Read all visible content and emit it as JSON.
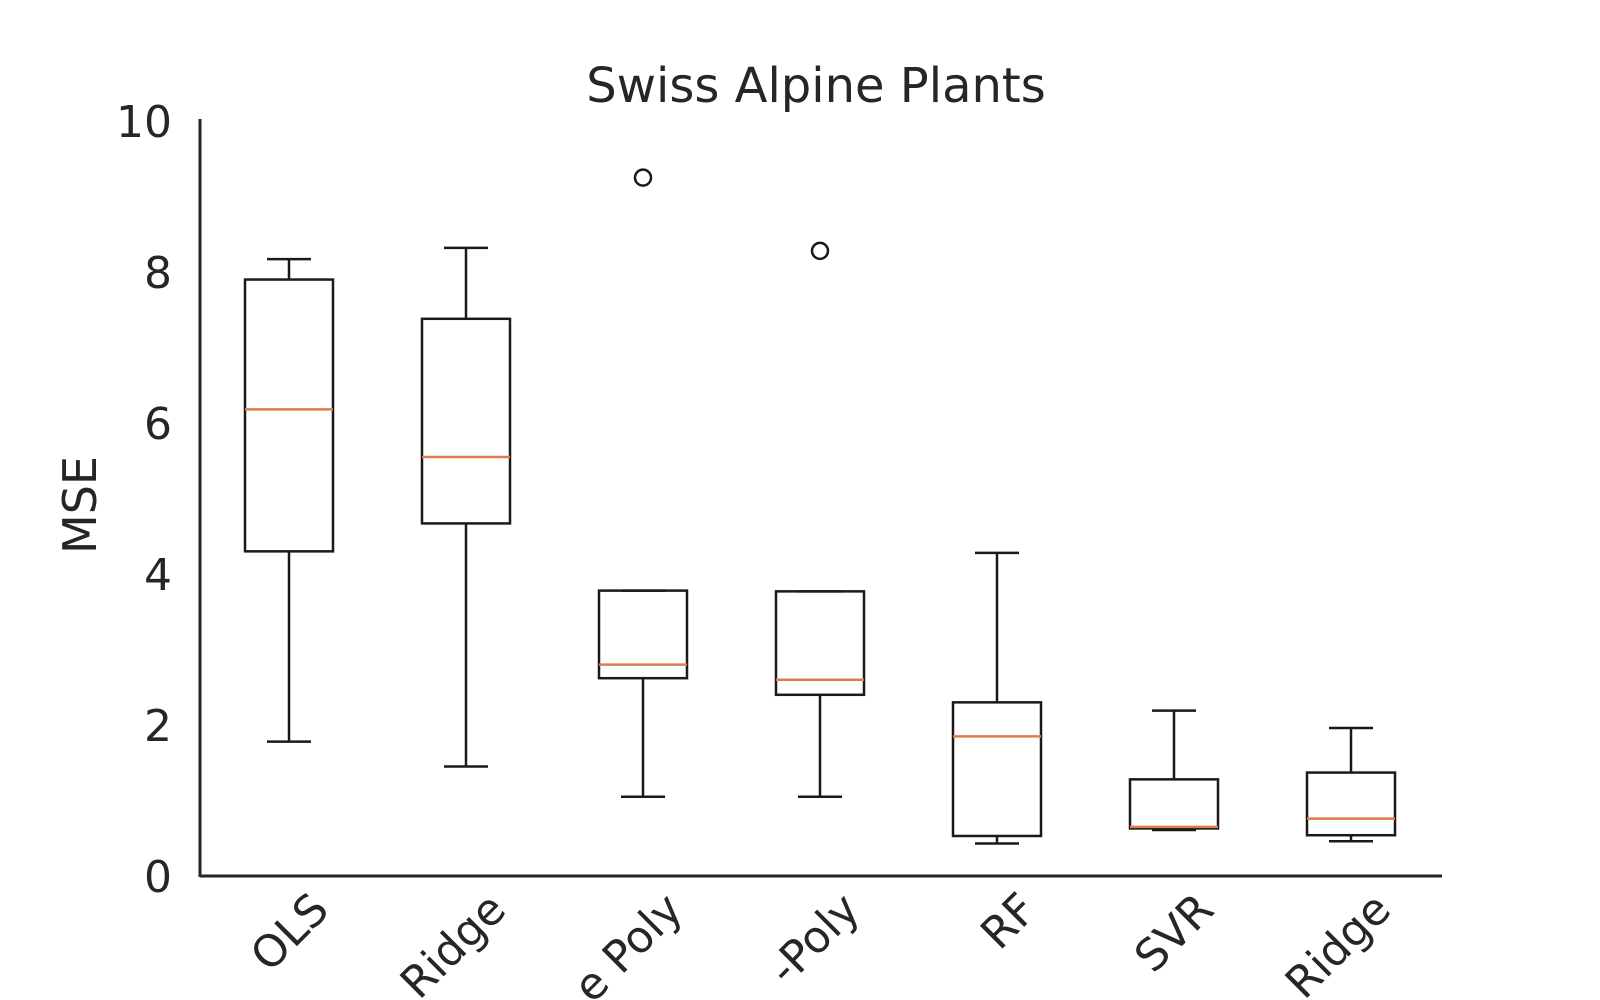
{
  "chart_data": {
    "type": "box",
    "title": "Swiss Alpine Plants",
    "xlabel": "",
    "ylabel": "MSE",
    "ylim": [
      0,
      10
    ],
    "yticks": [
      0,
      2,
      4,
      6,
      8,
      10
    ],
    "grid": false,
    "colors": {
      "box": "#1a1a1a",
      "median": "#e07b4a",
      "axis": "#262626"
    },
    "categories": [
      "OLS",
      "Ridge",
      "e Poly",
      "-Poly",
      "RF",
      "SVR",
      "Ridge"
    ],
    "boxes": [
      {
        "category": "OLS",
        "whisker_low": 1.78,
        "q1": 4.3,
        "median": 6.18,
        "q3": 7.9,
        "whisker_high": 8.17,
        "outliers": []
      },
      {
        "category": "Ridge",
        "whisker_low": 1.45,
        "q1": 4.67,
        "median": 5.55,
        "q3": 7.38,
        "whisker_high": 8.32,
        "outliers": []
      },
      {
        "category": "e Poly",
        "whisker_low": 1.05,
        "q1": 2.62,
        "median": 2.8,
        "q3": 3.78,
        "whisker_high": 3.78,
        "outliers": [
          9.25
        ]
      },
      {
        "category": "-Poly",
        "whisker_low": 1.05,
        "q1": 2.4,
        "median": 2.6,
        "q3": 3.77,
        "whisker_high": 3.77,
        "outliers": [
          8.28
        ]
      },
      {
        "category": "RF",
        "whisker_low": 0.43,
        "q1": 0.53,
        "median": 1.85,
        "q3": 2.3,
        "whisker_high": 4.28,
        "outliers": []
      },
      {
        "category": "SVR",
        "whisker_low": 0.61,
        "q1": 0.63,
        "median": 0.65,
        "q3": 1.28,
        "whisker_high": 2.19,
        "outliers": []
      },
      {
        "category": "Ridge",
        "whisker_low": 0.46,
        "q1": 0.54,
        "median": 0.76,
        "q3": 1.37,
        "whisker_high": 1.96,
        "outliers": []
      }
    ]
  }
}
